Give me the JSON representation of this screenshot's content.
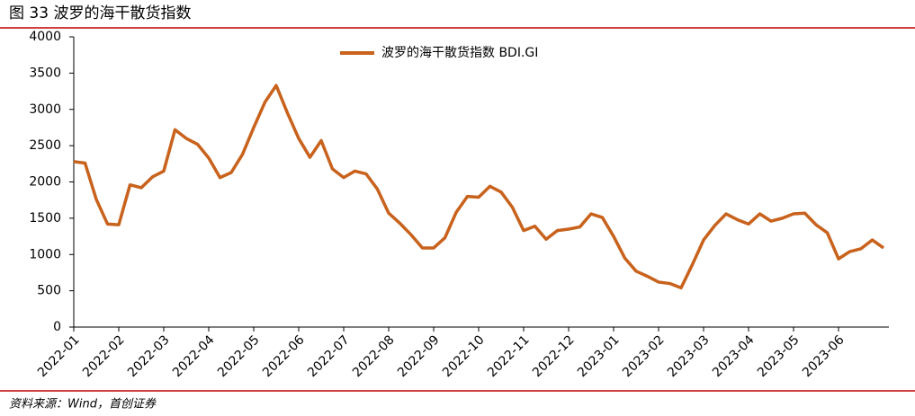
{
  "chart_data": {
    "type": "line",
    "title": "图 33 波罗的海干散货指数",
    "source": "资料来源：Wind，首创证券",
    "categories": [
      "2022-01",
      null,
      null,
      null,
      "2022-02",
      null,
      null,
      null,
      "2022-03",
      null,
      null,
      null,
      "2022-04",
      null,
      null,
      null,
      "2022-05",
      null,
      null,
      null,
      "2022-06",
      null,
      null,
      null,
      "2022-07",
      null,
      null,
      null,
      "2022-08",
      null,
      null,
      null,
      "2022-09",
      null,
      null,
      null,
      "2022-10",
      null,
      null,
      null,
      "2022-11",
      null,
      null,
      null,
      "2022-12",
      null,
      null,
      null,
      "2023-01",
      null,
      null,
      null,
      "2023-02",
      null,
      null,
      null,
      "2023-03",
      null,
      null,
      null,
      "2023-04",
      null,
      null,
      null,
      "2023-05",
      null,
      null,
      null,
      "2023-06",
      null,
      null,
      null,
      null
    ],
    "series": [
      {
        "name": "波罗的海干散货指数 BDI.GI",
        "color": "#c8621c",
        "values": [
          2280,
          2260,
          1760,
          1420,
          1410,
          1960,
          1920,
          2070,
          2150,
          2720,
          2600,
          2520,
          2330,
          2060,
          2130,
          2380,
          2750,
          3100,
          3330,
          2950,
          2600,
          2340,
          2570,
          2180,
          2060,
          2150,
          2110,
          1900,
          1570,
          1430,
          1270,
          1090,
          1090,
          1230,
          1580,
          1800,
          1790,
          1940,
          1860,
          1650,
          1330,
          1390,
          1210,
          1330,
          1350,
          1380,
          1560,
          1510,
          1250,
          950,
          770,
          700,
          620,
          600,
          540,
          860,
          1200,
          1400,
          1560,
          1480,
          1420,
          1560,
          1460,
          1500,
          1560,
          1570,
          1410,
          1300,
          940,
          1040,
          1080,
          1200,
          1090
        ]
      }
    ],
    "ylim": [
      0,
      4000
    ],
    "yticks": [
      0,
      500,
      1000,
      1500,
      2000,
      2500,
      3000,
      3500,
      4000
    ],
    "legend": "top"
  }
}
